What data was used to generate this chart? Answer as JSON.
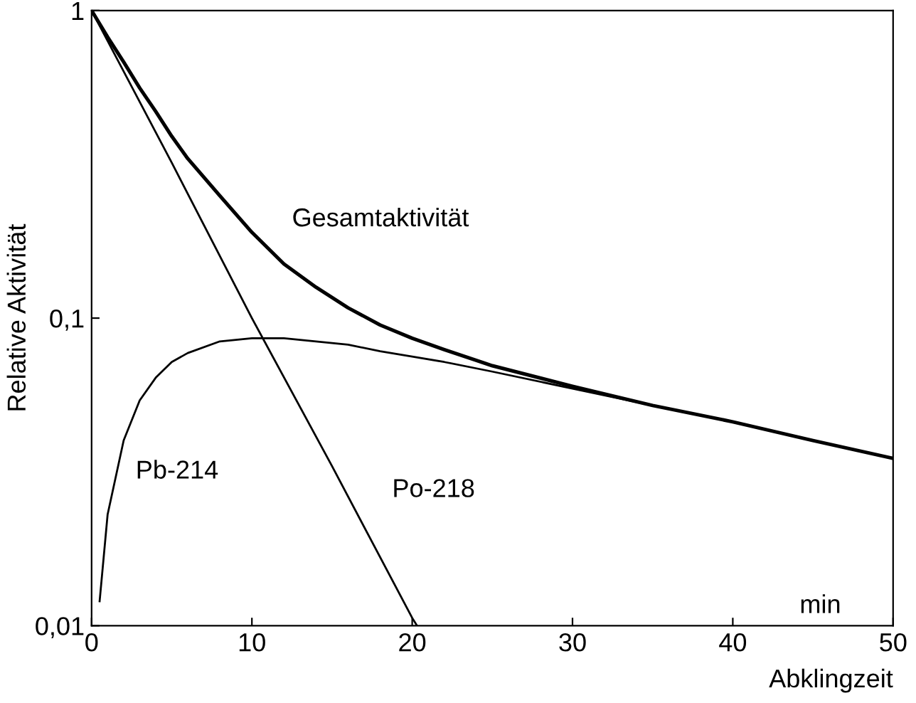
{
  "chart_data": {
    "type": "line",
    "xlabel": "Abklingzeit",
    "ylabel": "Relative Aktivität",
    "log": "y",
    "xlim": [
      0,
      50
    ],
    "ylim": [
      0.01,
      1
    ],
    "xticks": [
      0,
      10,
      20,
      30,
      40,
      50
    ],
    "yticks": [
      {
        "value": 0.01,
        "label": "0,01"
      },
      {
        "value": 0.1,
        "label": "0,1"
      },
      {
        "value": 1,
        "label": "1"
      }
    ],
    "grid": false,
    "marker": "none",
    "line_style": "solid",
    "series": [
      {
        "name": "Gesamtaktivität",
        "color": "#000000",
        "x": [
          0,
          1,
          2,
          3,
          4,
          5,
          6,
          8,
          10,
          12,
          14,
          16,
          18,
          20,
          22,
          25,
          30,
          35,
          40,
          45,
          50
        ],
        "values": [
          1,
          0.82,
          0.68,
          0.56,
          0.47,
          0.39,
          0.33,
          0.25,
          0.19,
          0.15,
          0.126,
          0.108,
          0.095,
          0.086,
          0.079,
          0.07,
          0.06,
          0.052,
          0.046,
          0.04,
          0.035
        ]
      },
      {
        "name": "Pb-214",
        "color": "#000000",
        "x": [
          0.5,
          1,
          2,
          3,
          4,
          5,
          6,
          8,
          10,
          12,
          14,
          16,
          18,
          20,
          22,
          25,
          30,
          35,
          40,
          45,
          50
        ],
        "values": [
          0.012,
          0.023,
          0.04,
          0.054,
          0.064,
          0.072,
          0.077,
          0.084,
          0.086,
          0.086,
          0.084,
          0.082,
          0.078,
          0.075,
          0.072,
          0.067,
          0.059,
          0.052,
          0.046,
          0.04,
          0.035
        ]
      },
      {
        "name": "Po-218",
        "color": "#000000",
        "x": [
          0,
          5,
          10,
          15,
          20,
          20.3
        ],
        "values": [
          1,
          0.32,
          0.1,
          0.033,
          0.0106,
          0.01
        ]
      }
    ],
    "annotations": [
      "min"
    ]
  }
}
